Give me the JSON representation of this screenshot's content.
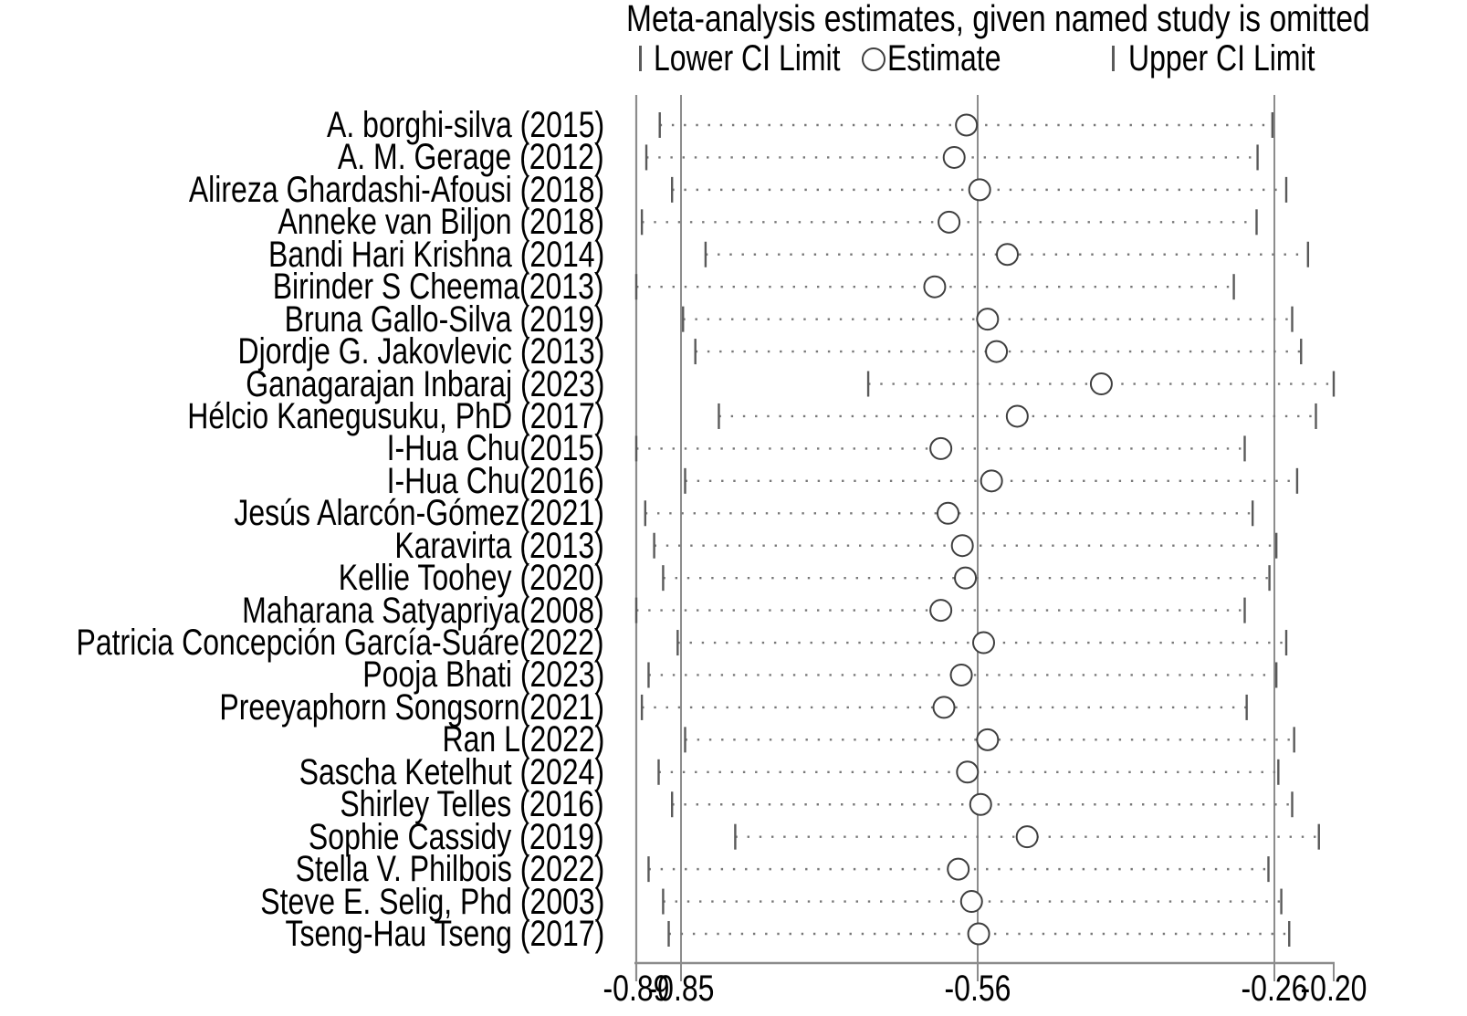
{
  "chart_data": {
    "type": "scatter",
    "subtype": "leave-one-out sensitivity forest plot",
    "title": "Meta-analysis estimates, given named study is omitted",
    "legend": {
      "lower_ci": "Lower CI Limit",
      "estimate": "Estimate",
      "upper_ci": "Upper CI Limit"
    },
    "legend_position": "top",
    "grid": false,
    "xlim": [
      -0.89,
      -0.2
    ],
    "x_ticks": [
      -0.89,
      -0.85,
      -0.56,
      -0.26,
      -0.2
    ],
    "x_tick_labels": [
      "-0.89",
      "-0.85",
      "-0.56",
      "-0.26",
      "-0.20"
    ],
    "ref_lines": [
      -0.85,
      -0.56,
      -0.26
    ],
    "colors": {
      "text": "#000000",
      "frame_line": "#8c8c8c",
      "ref_line": "#8c8c8c",
      "ci_tick": "#5a5a5a",
      "ci_dots": "#787878",
      "marker_stroke": "#3f3f3f",
      "marker_fill": "#ffffff"
    },
    "studies": [
      {
        "label": "A. borghi-silva (2015)",
        "lower": -0.869,
        "estimate": -0.571,
        "upper": -0.262
      },
      {
        "label": "A. M. Gerage (2012)",
        "lower": -0.881,
        "estimate": -0.583,
        "upper": -0.277
      },
      {
        "label": "Alireza Ghardashi-Afousi (2018)",
        "lower": -0.858,
        "estimate": -0.558,
        "upper": -0.248
      },
      {
        "label": "Anneke van Biljon (2018)",
        "lower": -0.885,
        "estimate": -0.588,
        "upper": -0.278
      },
      {
        "label": "Bandi Hari Krishna (2014)",
        "lower": -0.826,
        "estimate": -0.53,
        "upper": -0.226
      },
      {
        "label": "Birinder S Cheema(2013)",
        "lower": -0.89,
        "estimate": -0.602,
        "upper": -0.301
      },
      {
        "label": "Bruna Gallo-Silva (2019)",
        "lower": -0.848,
        "estimate": -0.55,
        "upper": -0.242
      },
      {
        "label": "Djordje G. Jakovlevic (2013)",
        "lower": -0.836,
        "estimate": -0.541,
        "upper": -0.233
      },
      {
        "label": "Ganagarajan Inbaraj (2023)",
        "lower": -0.667,
        "estimate": -0.435,
        "upper": -0.2
      },
      {
        "label": "Hélcio Kanegusuku, PhD (2017)",
        "lower": -0.813,
        "estimate": -0.52,
        "upper": -0.218
      },
      {
        "label": "I-Hua Chu(2015)",
        "lower": -0.89,
        "estimate": -0.596,
        "upper": -0.29
      },
      {
        "label": "I-Hua Chu(2016)",
        "lower": -0.846,
        "estimate": -0.546,
        "upper": -0.237
      },
      {
        "label": "Jesús Alarcón-Gómez(2021)",
        "lower": -0.882,
        "estimate": -0.589,
        "upper": -0.282
      },
      {
        "label": "Karavirta (2013)",
        "lower": -0.874,
        "estimate": -0.575,
        "upper": -0.258
      },
      {
        "label": "Kellie Toohey (2020)",
        "lower": -0.866,
        "estimate": -0.572,
        "upper": -0.265
      },
      {
        "label": "Maharana Satyapriya(2008)",
        "lower": -0.89,
        "estimate": -0.596,
        "upper": -0.29
      },
      {
        "label": "Patricia Concepción García-Suáre(2022)",
        "lower": -0.853,
        "estimate": -0.554,
        "upper": -0.248
      },
      {
        "label": "Pooja Bhati (2023)",
        "lower": -0.879,
        "estimate": -0.576,
        "upper": -0.258
      },
      {
        "label": "Preeyaphorn Songsorn(2021)",
        "lower": -0.885,
        "estimate": -0.593,
        "upper": -0.288
      },
      {
        "label": "Ran L(2022)",
        "lower": -0.846,
        "estimate": -0.55,
        "upper": -0.24
      },
      {
        "label": "Sascha Ketelhut (2024)",
        "lower": -0.87,
        "estimate": -0.57,
        "upper": -0.256
      },
      {
        "label": "Shirley Telles (2016)",
        "lower": -0.858,
        "estimate": -0.557,
        "upper": -0.242
      },
      {
        "label": "Sophie Cassidy (2019)",
        "lower": -0.797,
        "estimate": -0.51,
        "upper": -0.215
      },
      {
        "label": "Stella V. Philbois (2022)",
        "lower": -0.879,
        "estimate": -0.579,
        "upper": -0.266
      },
      {
        "label": "Steve E. Selig, Phd (2003)",
        "lower": -0.866,
        "estimate": -0.566,
        "upper": -0.253
      },
      {
        "label": "Tseng-Hau Tseng (2017)",
        "lower": -0.861,
        "estimate": -0.559,
        "upper": -0.245
      }
    ]
  }
}
